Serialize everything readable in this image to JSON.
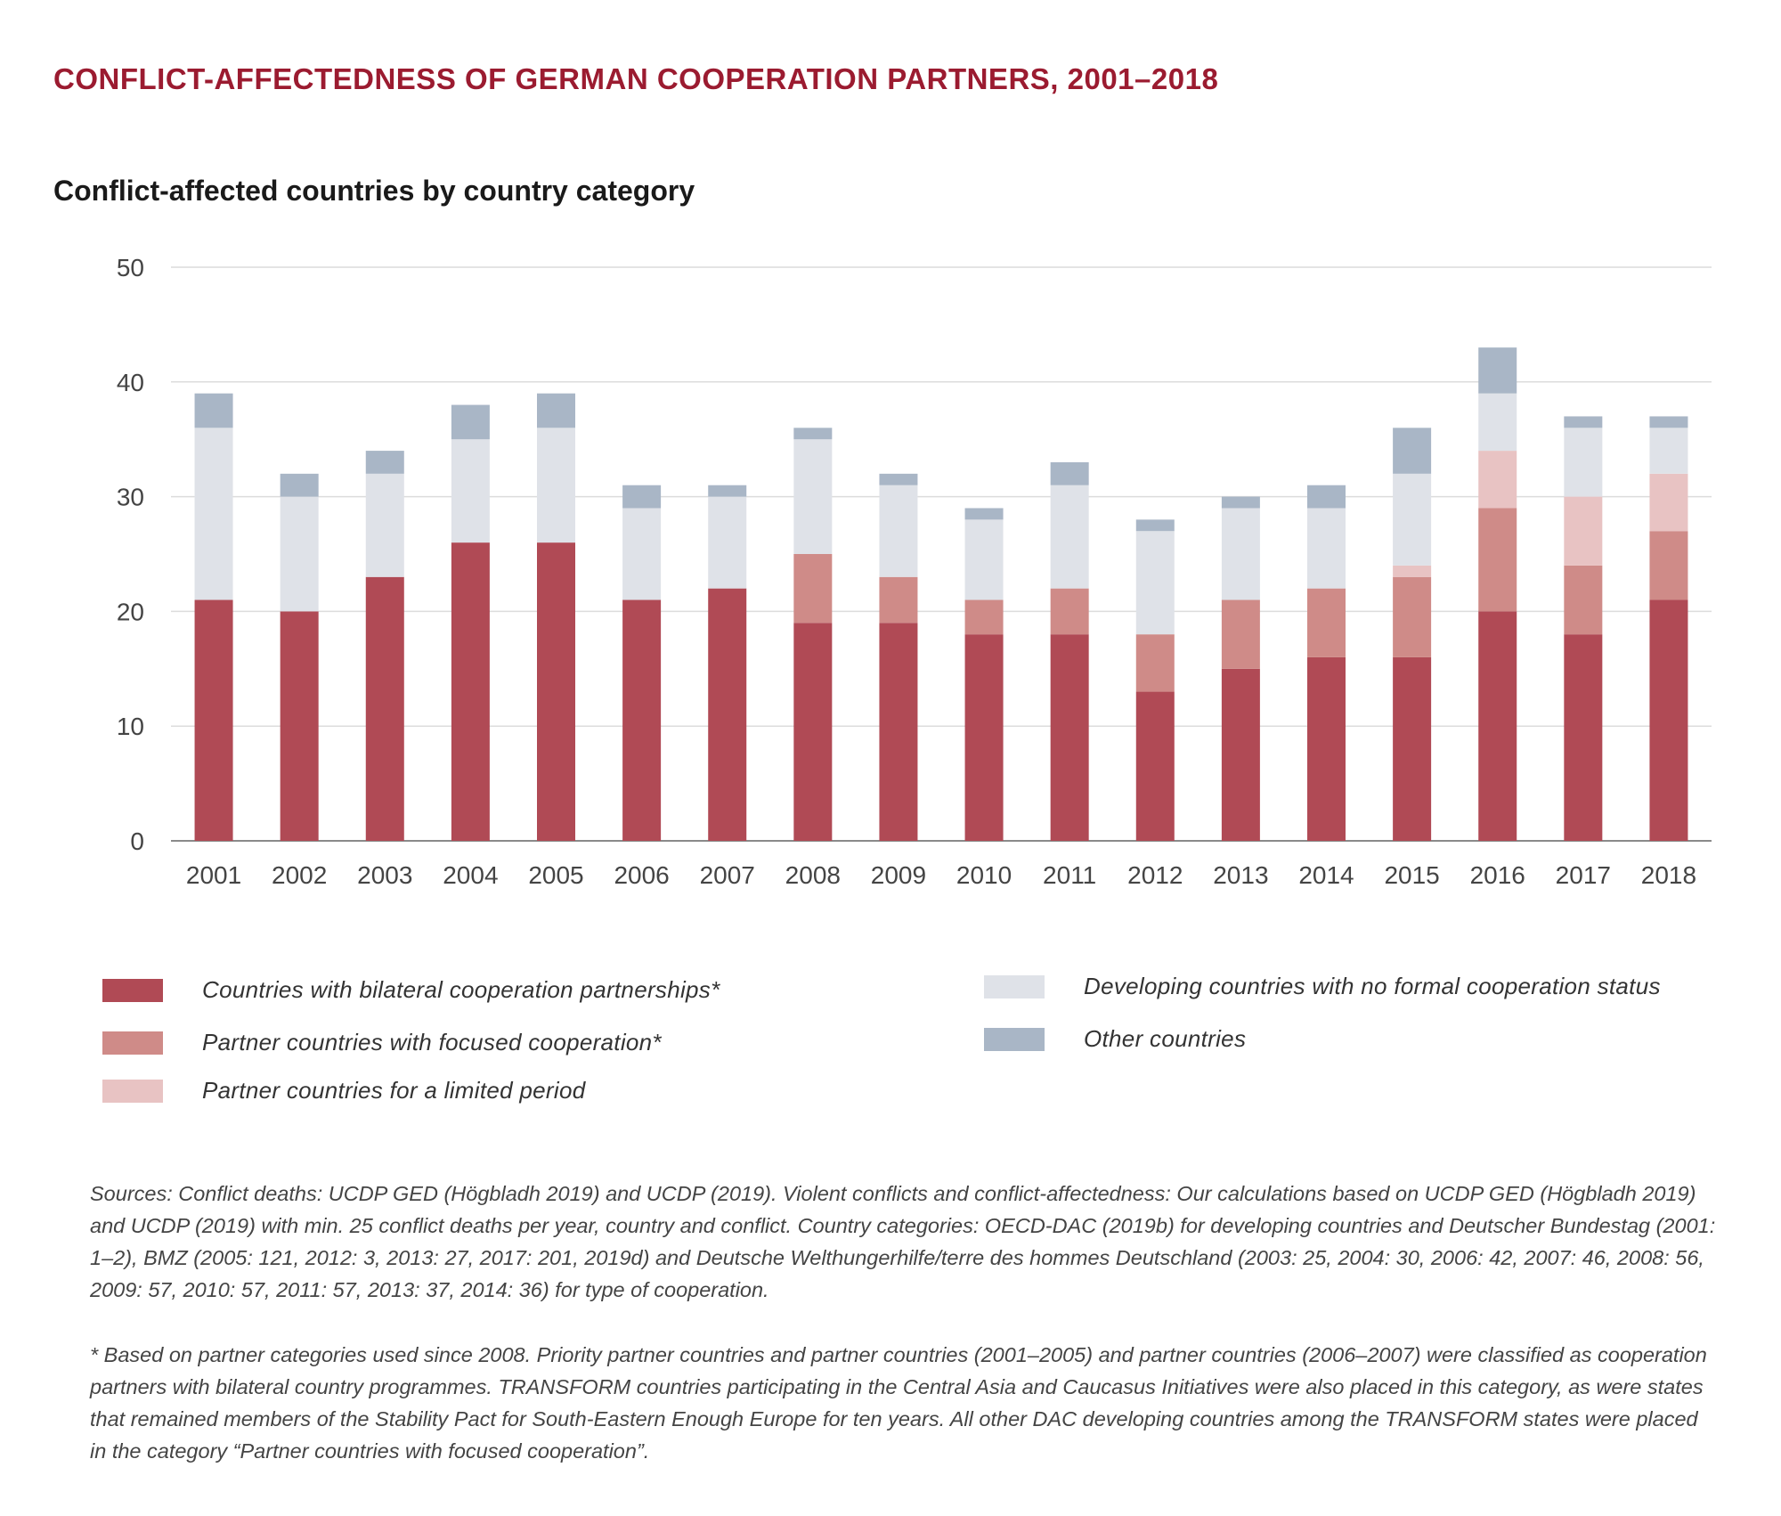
{
  "header": {
    "title": "CONFLICT-AFFECTEDNESS OF GERMAN COOPERATION PARTNERS, 2001–2018",
    "subtitle": "Conflict-affected countries by country category"
  },
  "legend": [
    {
      "label": "Countries with bilateral cooperation partnerships*",
      "color": "#b04a55"
    },
    {
      "label": "Partner countries with focused cooperation*",
      "color": "#cf8b88"
    },
    {
      "label": "Partner countries for a limited period",
      "color": "#e8c3c3"
    },
    {
      "label": "Developing countries with no formal cooperation status",
      "color": "#dfe2e8"
    },
    {
      "label": "Other countries",
      "color": "#a9b6c6"
    }
  ],
  "chart_data": {
    "type": "bar",
    "stacked": true,
    "categories": [
      "2001",
      "2002",
      "2003",
      "2004",
      "2005",
      "2006",
      "2007",
      "2008",
      "2009",
      "2010",
      "2011",
      "2012",
      "2013",
      "2014",
      "2015",
      "2016",
      "2017",
      "2018"
    ],
    "series": [
      {
        "name": "Countries with bilateral cooperation partnerships*",
        "color": "#b04a55",
        "values": [
          21,
          20,
          23,
          26,
          26,
          21,
          22,
          19,
          19,
          18,
          18,
          13,
          15,
          16,
          16,
          20,
          18,
          21
        ]
      },
      {
        "name": "Partner countries with focused cooperation*",
        "color": "#cf8b88",
        "values": [
          0,
          0,
          0,
          0,
          0,
          0,
          0,
          6,
          4,
          3,
          4,
          5,
          6,
          6,
          7,
          9,
          6,
          6
        ]
      },
      {
        "name": "Partner countries for a limited period",
        "color": "#e8c3c3",
        "values": [
          0,
          0,
          0,
          0,
          0,
          0,
          0,
          0,
          0,
          0,
          0,
          0,
          0,
          0,
          1,
          5,
          6,
          5
        ]
      },
      {
        "name": "Developing countries with no formal cooperation status",
        "color": "#dfe2e8",
        "values": [
          15,
          10,
          9,
          9,
          10,
          8,
          8,
          10,
          8,
          7,
          9,
          9,
          8,
          7,
          8,
          5,
          6,
          4
        ]
      },
      {
        "name": "Other countries",
        "color": "#a9b6c6",
        "values": [
          3,
          2,
          2,
          3,
          3,
          2,
          1,
          1,
          1,
          1,
          2,
          1,
          1,
          2,
          4,
          4,
          1,
          1
        ]
      }
    ],
    "yticks": [
      "0",
      "10",
      "20",
      "30",
      "40",
      "50"
    ],
    "ylim": [
      0,
      50
    ],
    "grid": true,
    "legend_position": "bottom"
  },
  "notes": {
    "sources": "Sources: Conflict deaths: UCDP GED (Högbladh 2019) and UCDP (2019). Violent conflicts and conflict-affectedness: Our calculations based on UCDP GED (Högbladh 2019) and UCDP (2019) with min. 25 conflict deaths per year, country and conflict. Country categories: OECD-DAC (2019b) for developing countries and Deutscher Bundestag (2001: 1–2), BMZ (2005: 121, 2012: 3, 2013: 27, 2017: 201, 2019d) and Deutsche Welthungerhilfe/terre des hommes Deutschland (2003: 25, 2004: 30, 2006: 42, 2007: 46, 2008: 56, 2009: 57, 2010: 57, 2011: 57, 2013: 37, 2014: 36) for type of cooperation.",
    "footnote": "* Based on partner categories used since 2008. Priority partner countries and partner countries (2001–2005) and partner countries (2006–2007) were classified as cooperation partners with bilateral country programmes. TRANSFORM countries participating in the Central Asia and Caucasus Initiatives were also placed in this category, as were states that remained members of the Stability Pact for South-Eastern Enough Europe for ten years. All other DAC developing countries among the TRANSFORM states were placed in the category “Partner countries with focused cooperation”."
  }
}
